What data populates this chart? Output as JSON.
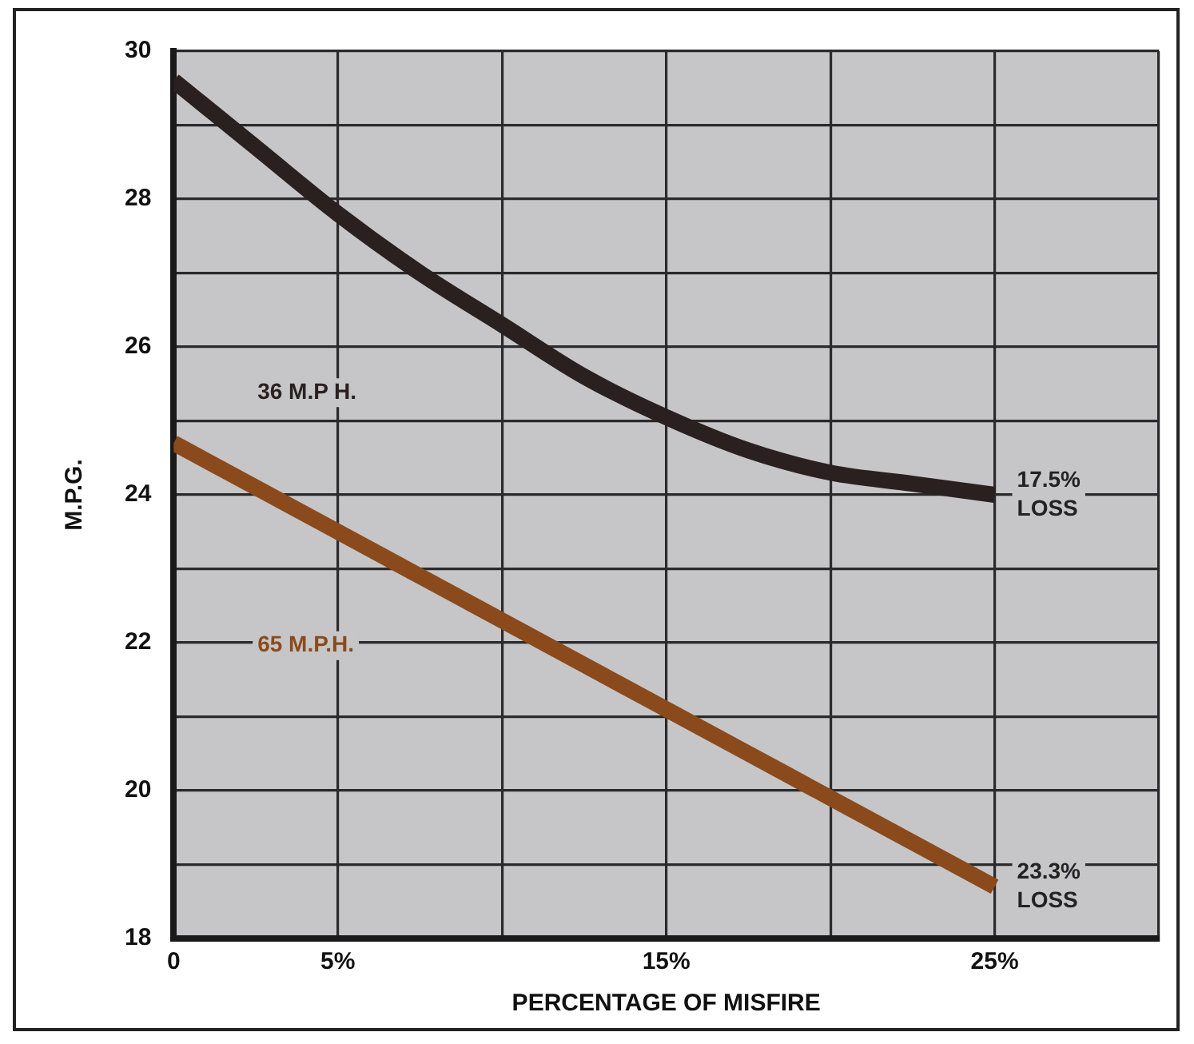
{
  "chart_data": {
    "type": "line",
    "xlabel": "PERCENTAGE OF MISFIRE",
    "ylabel": "M.P.G.",
    "x": [
      0,
      2.5,
      5,
      7.5,
      10,
      12.5,
      15,
      17.5,
      20,
      22.5,
      25
    ],
    "series": [
      {
        "name": "36 M.P H.",
        "color": "#2b2020",
        "values": [
          29.6,
          28.7,
          27.8,
          27.0,
          26.3,
          25.6,
          25.05,
          24.6,
          24.3,
          24.15,
          24.0
        ]
      },
      {
        "name": "65 M.P.H.",
        "color": "#8b4a1c",
        "values": [
          24.7,
          24.1,
          23.5,
          22.9,
          22.3,
          21.7,
          21.1,
          20.5,
          19.9,
          19.3,
          18.7
        ]
      }
    ],
    "xlim": [
      0,
      30
    ],
    "xticks": [
      0,
      {
        "value": 5,
        "label": "5%"
      },
      {
        "value": 10,
        "label": null
      },
      {
        "value": 15,
        "label": "15%"
      },
      {
        "value": 20,
        "label": null
      },
      {
        "value": 25,
        "label": "25%"
      },
      {
        "value": 30,
        "label": null
      }
    ],
    "ylim": [
      18,
      30
    ],
    "yticks": [
      18,
      {
        "value": 19,
        "label": null
      },
      20,
      {
        "value": 21,
        "label": null
      },
      22,
      {
        "value": 23,
        "label": null
      },
      24,
      {
        "value": 25,
        "label": null
      },
      26,
      {
        "value": 27,
        "label": null
      },
      28,
      {
        "value": 29,
        "label": null
      },
      30
    ],
    "annotations": [
      {
        "text": "17.5%\nLOSS",
        "x": 25,
        "y": 24.0
      },
      {
        "text": "23.3%\nLOSS",
        "x": 25,
        "y": 18.7
      }
    ],
    "grid": true,
    "legend": false,
    "marker": "none",
    "line_style": "solid"
  }
}
